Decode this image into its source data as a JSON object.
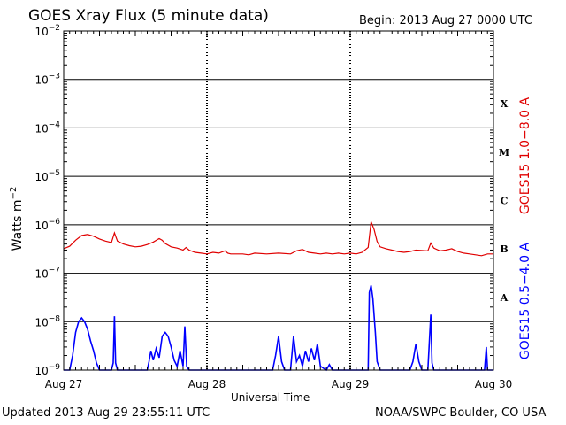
{
  "header": {
    "title": "GOES Xray Flux (5 minute data)",
    "begin": "Begin:  2013 Aug 27 0000 UTC"
  },
  "footer": {
    "updated": "Updated 2013 Aug 29 23:55:11 UTC",
    "credit": "NOAA/SWPC Boulder, CO USA"
  },
  "chart_data": {
    "type": "line",
    "title": "GOES Xray Flux (5 minute data)",
    "xlabel": "Universal Time",
    "ylabel": "Watts m",
    "ylabel_sup": "−2",
    "yscale": "log",
    "ylim": [
      1e-09,
      0.01
    ],
    "xlim": [
      0,
      72
    ],
    "x_unit": "hours since 2013 Aug 27 0000 UTC",
    "x_ticks": [
      {
        "x": 0,
        "label": "Aug 27"
      },
      {
        "x": 24,
        "label": "Aug 28"
      },
      {
        "x": 48,
        "label": "Aug 29"
      },
      {
        "x": 72,
        "label": "Aug 30"
      }
    ],
    "y_ticks": [
      {
        "base": "10",
        "exp": "−2"
      },
      {
        "base": "10",
        "exp": "−3"
      },
      {
        "base": "10",
        "exp": "−4"
      },
      {
        "base": "10",
        "exp": "−5"
      },
      {
        "base": "10",
        "exp": "−6"
      },
      {
        "base": "10",
        "exp": "−7"
      },
      {
        "base": "10",
        "exp": "−8"
      },
      {
        "base": "10",
        "exp": "−9"
      }
    ],
    "flare_classes": [
      {
        "label": "X",
        "decade": -4
      },
      {
        "label": "M",
        "decade": -5
      },
      {
        "label": "C",
        "decade": -6
      },
      {
        "label": "B",
        "decade": -7
      },
      {
        "label": "A",
        "decade": -8
      }
    ],
    "grid": true,
    "series": [
      {
        "name": "GOES15 1.0−8.0 A",
        "color": "#e00000",
        "points": [
          [
            0,
            3.2e-07
          ],
          [
            1,
            3.6e-07
          ],
          [
            2,
            4.8e-07
          ],
          [
            3,
            6e-07
          ],
          [
            4,
            6.3e-07
          ],
          [
            5,
            5.8e-07
          ],
          [
            6,
            5.1e-07
          ],
          [
            7,
            4.6e-07
          ],
          [
            8,
            4.3e-07
          ],
          [
            8.5,
            6.8e-07
          ],
          [
            9,
            4.6e-07
          ],
          [
            10,
            4e-07
          ],
          [
            11,
            3.7e-07
          ],
          [
            12,
            3.5e-07
          ],
          [
            13,
            3.6e-07
          ],
          [
            14,
            3.9e-07
          ],
          [
            15,
            4.4e-07
          ],
          [
            16,
            5.2e-07
          ],
          [
            16.5,
            4.8e-07
          ],
          [
            17,
            4.1e-07
          ],
          [
            18,
            3.5e-07
          ],
          [
            19,
            3.3e-07
          ],
          [
            20,
            3e-07
          ],
          [
            20.5,
            3.4e-07
          ],
          [
            21,
            3e-07
          ],
          [
            22,
            2.7e-07
          ],
          [
            23,
            2.6e-07
          ],
          [
            24,
            2.5e-07
          ],
          [
            25,
            2.7e-07
          ],
          [
            26,
            2.6e-07
          ],
          [
            27,
            2.9e-07
          ],
          [
            27.5,
            2.6e-07
          ],
          [
            28,
            2.5e-07
          ],
          [
            30,
            2.5e-07
          ],
          [
            31,
            2.4e-07
          ],
          [
            32,
            2.6e-07
          ],
          [
            34,
            2.5e-07
          ],
          [
            36,
            2.6e-07
          ],
          [
            38,
            2.5e-07
          ],
          [
            39,
            2.9e-07
          ],
          [
            40,
            3.1e-07
          ],
          [
            41,
            2.7e-07
          ],
          [
            42,
            2.6e-07
          ],
          [
            43,
            2.5e-07
          ],
          [
            44,
            2.6e-07
          ],
          [
            45,
            2.5e-07
          ],
          [
            46,
            2.6e-07
          ],
          [
            47,
            2.5e-07
          ],
          [
            48,
            2.6e-07
          ],
          [
            49,
            2.5e-07
          ],
          [
            50,
            2.7e-07
          ],
          [
            51,
            3.4e-07
          ],
          [
            51.5,
            1.15e-06
          ],
          [
            52,
            8e-07
          ],
          [
            52.5,
            4.5e-07
          ],
          [
            53,
            3.5e-07
          ],
          [
            54,
            3.2e-07
          ],
          [
            55,
            3e-07
          ],
          [
            56,
            2.8e-07
          ],
          [
            57,
            2.7e-07
          ],
          [
            58,
            2.8e-07
          ],
          [
            59,
            3e-07
          ],
          [
            61,
            2.9e-07
          ],
          [
            61.5,
            4.2e-07
          ],
          [
            62,
            3.3e-07
          ],
          [
            63,
            2.9e-07
          ],
          [
            64,
            3e-07
          ],
          [
            65,
            3.2e-07
          ],
          [
            66,
            2.8e-07
          ],
          [
            67,
            2.6e-07
          ],
          [
            68,
            2.5e-07
          ],
          [
            69,
            2.4e-07
          ],
          [
            70,
            2.3e-07
          ],
          [
            71,
            2.5e-07
          ],
          [
            72,
            2.5e-07
          ]
        ]
      },
      {
        "name": "GOES15 0.5−4.0 A",
        "color": "#0000ff",
        "points": [
          [
            0,
            1e-09
          ],
          [
            1,
            1e-09
          ],
          [
            1.5,
            2e-09
          ],
          [
            2,
            6e-09
          ],
          [
            2.5,
            1e-08
          ],
          [
            3,
            1.2e-08
          ],
          [
            3.5,
            1e-08
          ],
          [
            4,
            7e-09
          ],
          [
            4.5,
            4e-09
          ],
          [
            5,
            2.5e-09
          ],
          [
            5.5,
            1.4e-09
          ],
          [
            6,
            1e-09
          ],
          [
            8,
            1e-09
          ],
          [
            8.3,
            1.4e-09
          ],
          [
            8.5,
            1.3e-08
          ],
          [
            8.7,
            1.4e-09
          ],
          [
            9,
            1e-09
          ],
          [
            14,
            1e-09
          ],
          [
            14.3,
            1.5e-09
          ],
          [
            14.6,
            2.5e-09
          ],
          [
            15,
            1.6e-09
          ],
          [
            15.5,
            2.8e-09
          ],
          [
            16,
            1.8e-09
          ],
          [
            16.5,
            5e-09
          ],
          [
            17,
            6e-09
          ],
          [
            17.5,
            5e-09
          ],
          [
            18,
            3e-09
          ],
          [
            18.5,
            1.6e-09
          ],
          [
            19,
            1.2e-09
          ],
          [
            19.5,
            2.5e-09
          ],
          [
            20,
            1.2e-09
          ],
          [
            20.3,
            8e-09
          ],
          [
            20.6,
            1.2e-09
          ],
          [
            21,
            1e-09
          ],
          [
            35,
            1e-09
          ],
          [
            35.5,
            2e-09
          ],
          [
            36,
            5e-09
          ],
          [
            36.5,
            1.5e-09
          ],
          [
            37,
            1e-09
          ],
          [
            38,
            1e-09
          ],
          [
            38.5,
            5e-09
          ],
          [
            39,
            1.5e-09
          ],
          [
            39.5,
            2e-09
          ],
          [
            40,
            1.2e-09
          ],
          [
            40.5,
            2.5e-09
          ],
          [
            41,
            1.5e-09
          ],
          [
            41.5,
            2.8e-09
          ],
          [
            42,
            1.6e-09
          ],
          [
            42.5,
            3.5e-09
          ],
          [
            43,
            1.2e-09
          ],
          [
            44,
            1e-09
          ],
          [
            44.5,
            1.3e-09
          ],
          [
            45,
            1e-09
          ],
          [
            51,
            1e-09
          ],
          [
            51.2,
            4e-08
          ],
          [
            51.5,
            5.6e-08
          ],
          [
            51.8,
            3e-08
          ],
          [
            52.2,
            6e-09
          ],
          [
            52.5,
            1.5e-09
          ],
          [
            53,
            1e-09
          ],
          [
            58,
            1e-09
          ],
          [
            58.5,
            1.5e-09
          ],
          [
            59,
            3.5e-09
          ],
          [
            59.5,
            1.5e-09
          ],
          [
            60,
            1e-09
          ],
          [
            61,
            1e-09
          ],
          [
            61.5,
            1.4e-08
          ],
          [
            61.7,
            1.4e-09
          ],
          [
            62,
            1e-09
          ],
          [
            70.5,
            1e-09
          ],
          [
            70.8,
            3e-09
          ],
          [
            71,
            1e-09
          ],
          [
            72,
            1e-09
          ]
        ]
      }
    ]
  }
}
